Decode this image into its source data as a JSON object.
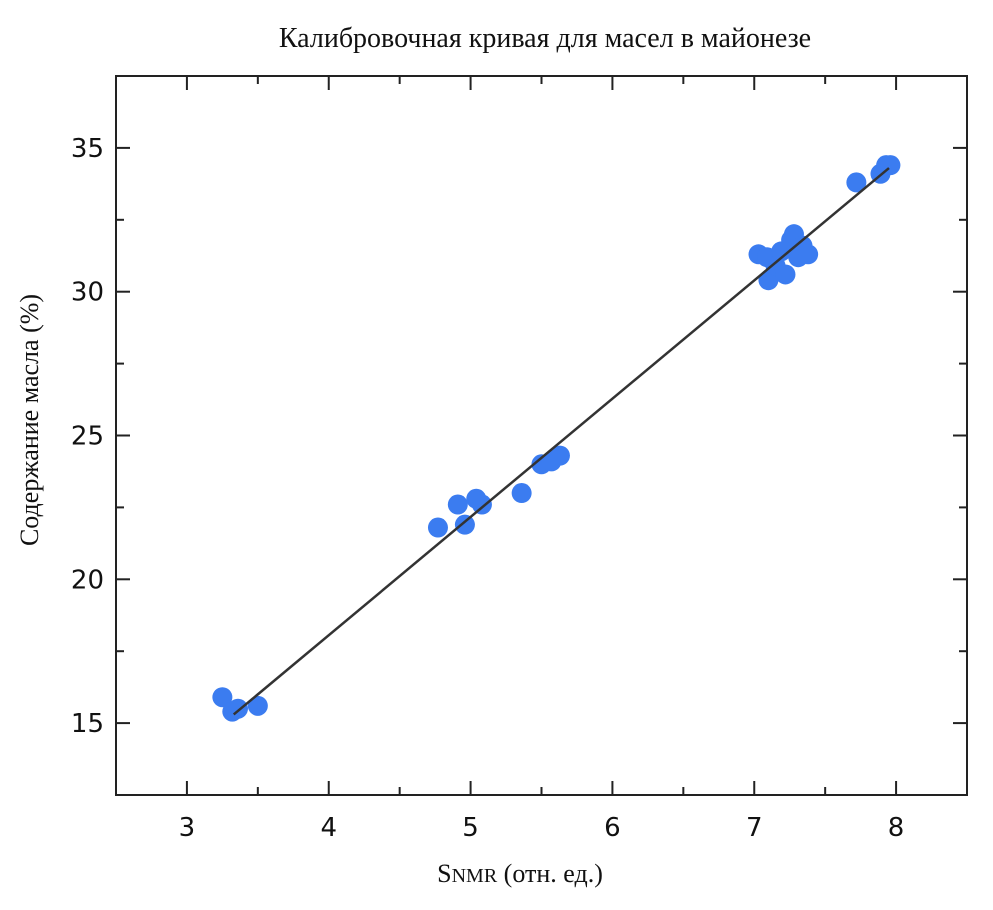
{
  "chart_data": {
    "type": "scatter",
    "title": "Калибровочная кривая для масел в майонезе",
    "xlabel_main": "S",
    "xlabel_sub": "NMR",
    "xlabel_rest": " (отн. ед.)",
    "ylabel": "Содержание масла (%)",
    "xlim": [
      2.5,
      8.5
    ],
    "ylim": [
      12.5,
      37.5
    ],
    "xticks": [
      3,
      4,
      5,
      6,
      7,
      8
    ],
    "yticks": [
      15,
      20,
      25,
      30,
      35
    ],
    "grid": false,
    "point_color": "#3b7cf0",
    "line_color": "#333333",
    "points": [
      {
        "x": 3.25,
        "y": 15.9
      },
      {
        "x": 3.32,
        "y": 15.4
      },
      {
        "x": 3.36,
        "y": 15.5
      },
      {
        "x": 3.5,
        "y": 15.6
      },
      {
        "x": 4.77,
        "y": 21.8
      },
      {
        "x": 4.91,
        "y": 22.6
      },
      {
        "x": 4.96,
        "y": 21.9
      },
      {
        "x": 5.04,
        "y": 22.8
      },
      {
        "x": 5.08,
        "y": 22.6
      },
      {
        "x": 5.36,
        "y": 23.0
      },
      {
        "x": 5.5,
        "y": 24.0
      },
      {
        "x": 5.57,
        "y": 24.1
      },
      {
        "x": 5.63,
        "y": 24.3
      },
      {
        "x": 7.03,
        "y": 31.3
      },
      {
        "x": 7.09,
        "y": 31.2
      },
      {
        "x": 7.1,
        "y": 30.4
      },
      {
        "x": 7.15,
        "y": 30.9
      },
      {
        "x": 7.19,
        "y": 31.4
      },
      {
        "x": 7.22,
        "y": 30.6
      },
      {
        "x": 7.26,
        "y": 31.8
      },
      {
        "x": 7.28,
        "y": 32.0
      },
      {
        "x": 7.31,
        "y": 31.2
      },
      {
        "x": 7.34,
        "y": 31.6
      },
      {
        "x": 7.38,
        "y": 31.3
      },
      {
        "x": 7.72,
        "y": 33.8
      },
      {
        "x": 7.89,
        "y": 34.1
      },
      {
        "x": 7.93,
        "y": 34.4
      },
      {
        "x": 7.96,
        "y": 34.4
      }
    ],
    "fit_line": {
      "x1": 3.33,
      "y1": 15.3,
      "x2": 7.95,
      "y2": 34.3
    }
  }
}
